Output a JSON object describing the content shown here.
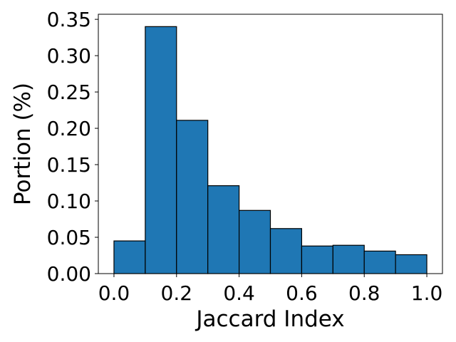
{
  "chart_data": {
    "type": "bar",
    "title": "",
    "xlabel": "Jaccard Index",
    "ylabel": "Portion (%)",
    "bins": [
      {
        "x0": 0.0,
        "x1": 0.1,
        "value": 0.045
      },
      {
        "x0": 0.1,
        "x1": 0.2,
        "value": 0.34
      },
      {
        "x0": 0.2,
        "x1": 0.3,
        "value": 0.211
      },
      {
        "x0": 0.3,
        "x1": 0.4,
        "value": 0.121
      },
      {
        "x0": 0.4,
        "x1": 0.5,
        "value": 0.087
      },
      {
        "x0": 0.5,
        "x1": 0.6,
        "value": 0.062
      },
      {
        "x0": 0.6,
        "x1": 0.7,
        "value": 0.038
      },
      {
        "x0": 0.7,
        "x1": 0.8,
        "value": 0.039
      },
      {
        "x0": 0.8,
        "x1": 0.9,
        "value": 0.031
      },
      {
        "x0": 0.9,
        "x1": 1.0,
        "value": 0.026
      }
    ],
    "xlim": [
      -0.05,
      1.05
    ],
    "ylim": [
      0,
      0.357
    ],
    "xticks": [
      "0.0",
      "0.2",
      "0.4",
      "0.6",
      "0.8",
      "1.0"
    ],
    "yticks": [
      "0.00",
      "0.05",
      "0.10",
      "0.15",
      "0.20",
      "0.25",
      "0.30",
      "0.35"
    ],
    "bar_color": "#1f77b4",
    "edge_color": "#000000",
    "grid": false,
    "legend": "none"
  }
}
